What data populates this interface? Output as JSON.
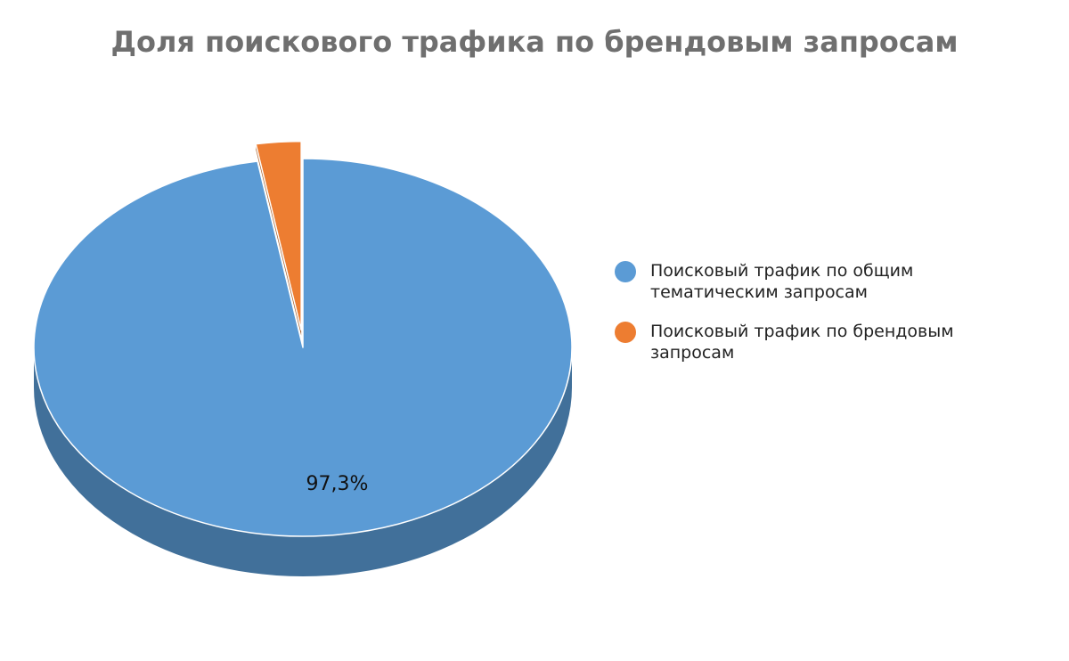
{
  "chart_data": {
    "type": "pie",
    "title": "Доля поискового трафика по брендовым запросам",
    "categories": [
      "Поисковый трафик по общим тематическим запросам",
      "Поисковый трафик по брендовым запросам"
    ],
    "values": [
      97.3,
      2.7
    ],
    "data_labels": [
      "97,3%",
      ""
    ],
    "colors": [
      "#5b9bd5",
      "#ed7d31"
    ],
    "side_colors": [
      "#41709a",
      "#a55a23"
    ],
    "exploded": [
      false,
      true
    ],
    "legend_position": "right",
    "style": "3d"
  }
}
